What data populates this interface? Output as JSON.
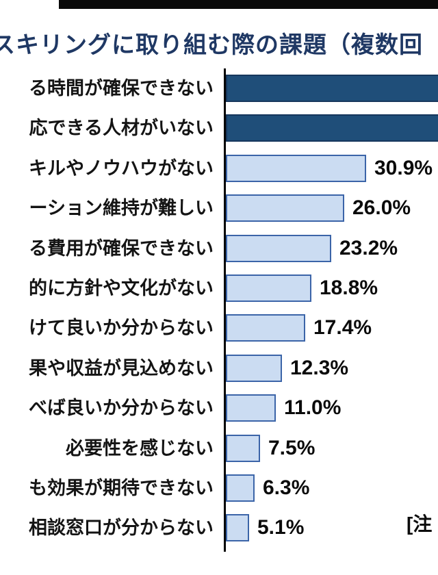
{
  "title": "スキリングに取り組む際の課題（複数回",
  "note": "[注",
  "chart_data": {
    "type": "bar",
    "orientation": "horizontal",
    "title": "スキリングに取り組む際の課題（複数回",
    "unit": "%",
    "legend": "none",
    "gridlines": false,
    "x_axis": {
      "min": 0,
      "labels_visible": false
    },
    "rows": [
      {
        "label": "る時間が確保できない",
        "value": 52.6,
        "value_label": "",
        "emphasis": true,
        "cropped_right": true
      },
      {
        "label": "応できる人材がいない",
        "value": 48.5,
        "value_label": "",
        "emphasis": true,
        "cropped_right": true
      },
      {
        "label": "キルやノウハウがない",
        "value": 30.9,
        "value_label": "30.9%",
        "emphasis": false
      },
      {
        "label": "ーション維持が難しい",
        "value": 26.0,
        "value_label": "26.0%",
        "emphasis": false
      },
      {
        "label": "る費用が確保できない",
        "value": 23.2,
        "value_label": "23.2%",
        "emphasis": false
      },
      {
        "label": "的に方針や文化がない",
        "value": 18.8,
        "value_label": "18.8%",
        "emphasis": false
      },
      {
        "label": "けて良いか分からない",
        "value": 17.4,
        "value_label": "17.4%",
        "emphasis": false
      },
      {
        "label": "果や収益が見込めない",
        "value": 12.3,
        "value_label": "12.3%",
        "emphasis": false
      },
      {
        "label": "べば良いか分からない",
        "value": 11.0,
        "value_label": "11.0%",
        "emphasis": false
      },
      {
        "label": "必要性を感じない",
        "value": 7.5,
        "value_label": "7.5%",
        "emphasis": false
      },
      {
        "label": "も効果が期待できない",
        "value": 6.3,
        "value_label": "6.3%",
        "emphasis": false
      },
      {
        "label": "相談窓口が分からない",
        "value": 5.1,
        "value_label": "5.1%",
        "emphasis": false
      }
    ],
    "colors": {
      "emphasis_fill": "#1F4E79",
      "emphasis_border": "#16365C",
      "normal_fill": "#CBDCF2",
      "normal_border": "#3B64A8",
      "axis": "#000000",
      "title": "#1F3864",
      "text": "#0B0B0B"
    }
  }
}
